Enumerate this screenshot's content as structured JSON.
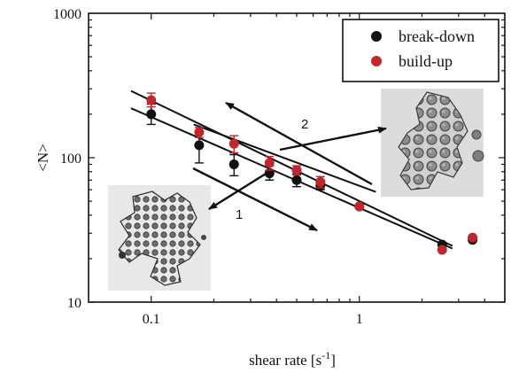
{
  "chart_data": {
    "type": "scatter",
    "xscale": "log",
    "yscale": "log",
    "xlim": [
      0.05,
      5
    ],
    "ylim": [
      10,
      1000
    ],
    "xlabel": "shear rate [s",
    "xlabel_sup": "-1",
    "xlabel_suffix": "]",
    "ylabel": "<N>",
    "xticks": [
      {
        "v": 0.1,
        "label": "0.1"
      },
      {
        "v": 1,
        "label": "1"
      }
    ],
    "yticks": [
      {
        "v": 10,
        "label": "10"
      },
      {
        "v": 100,
        "label": "100"
      },
      {
        "v": 1000,
        "label": "1000"
      }
    ],
    "legend_position": "top-right",
    "series": [
      {
        "name": "break-down",
        "color": "#111111",
        "points": [
          {
            "x": 0.1,
            "y": 200,
            "err": [
              170,
              235
            ]
          },
          {
            "x": 0.17,
            "y": 122,
            "err": [
              92,
              152
            ]
          },
          {
            "x": 0.25,
            "y": 90,
            "err": [
              75,
              105
            ]
          },
          {
            "x": 0.37,
            "y": 78,
            "err": [
              70,
              88
            ]
          },
          {
            "x": 0.5,
            "y": 70,
            "err": [
              63,
              77
            ]
          },
          {
            "x": 0.65,
            "y": 64,
            "err": [
              60,
              68
            ]
          },
          {
            "x": 1.0,
            "y": 46
          },
          {
            "x": 2.5,
            "y": 25
          },
          {
            "x": 3.5,
            "y": 27
          }
        ]
      },
      {
        "name": "build-up",
        "color": "#c0272d",
        "points": [
          {
            "x": 0.1,
            "y": 250,
            "err": [
              225,
              280
            ]
          },
          {
            "x": 0.17,
            "y": 150,
            "err": [
              138,
              162
            ]
          },
          {
            "x": 0.25,
            "y": 125,
            "err": [
              108,
              142
            ]
          },
          {
            "x": 0.37,
            "y": 92,
            "err": [
              82,
              102
            ]
          },
          {
            "x": 0.5,
            "y": 82,
            "err": [
              76,
              88
            ]
          },
          {
            "x": 0.65,
            "y": 68,
            "err": [
              62,
              74
            ]
          },
          {
            "x": 1.0,
            "y": 46
          },
          {
            "x": 2.5,
            "y": 23
          },
          {
            "x": 3.5,
            "y": 28
          }
        ]
      }
    ],
    "fit_lines": [
      {
        "x1": 0.08,
        "y1": 220,
        "x2": 2.8,
        "y2": 23.5
      },
      {
        "x1": 0.08,
        "y1": 290,
        "x2": 2.8,
        "y2": 24.5
      },
      {
        "x1": 0.16,
        "y1": 170,
        "x2": 1.2,
        "y2": 58
      }
    ],
    "annotations": [
      {
        "label": "1"
      },
      {
        "label": "2"
      }
    ]
  }
}
